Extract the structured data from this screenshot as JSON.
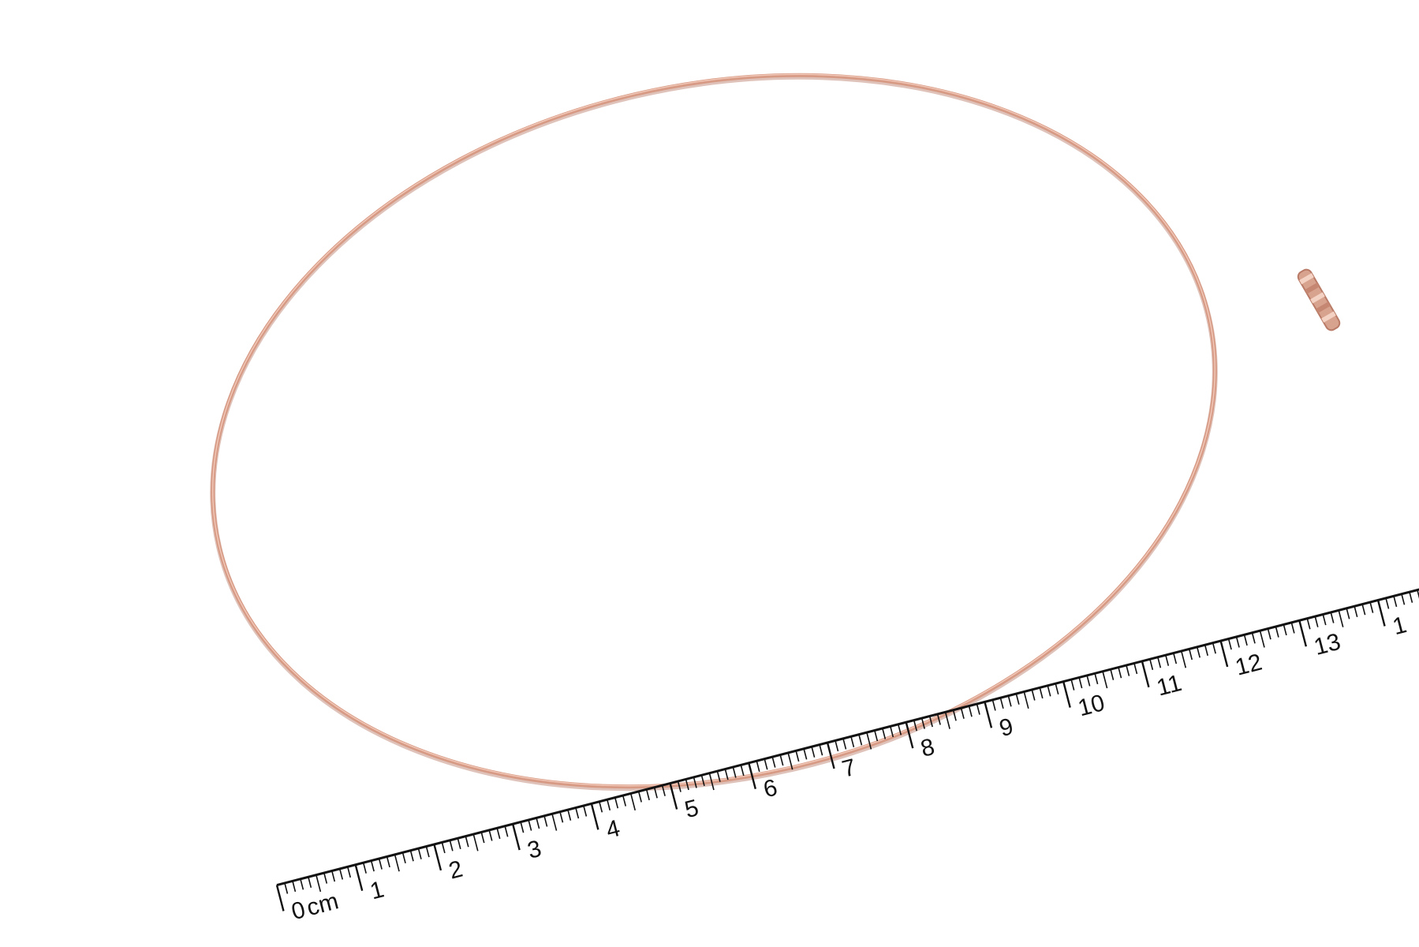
{
  "scene": {
    "background": "#ffffff",
    "subject": "rose-gold-wire-necklace",
    "wire_color": "#d79a84",
    "wire_highlight": "#f1c7b7"
  },
  "ruler": {
    "unit_label": "cm",
    "numbers": [
      "0",
      "1",
      "2",
      "3",
      "4",
      "5",
      "6",
      "7",
      "8",
      "9",
      "10",
      "11",
      "12",
      "13",
      "1"
    ],
    "tick_color": "#111111"
  }
}
